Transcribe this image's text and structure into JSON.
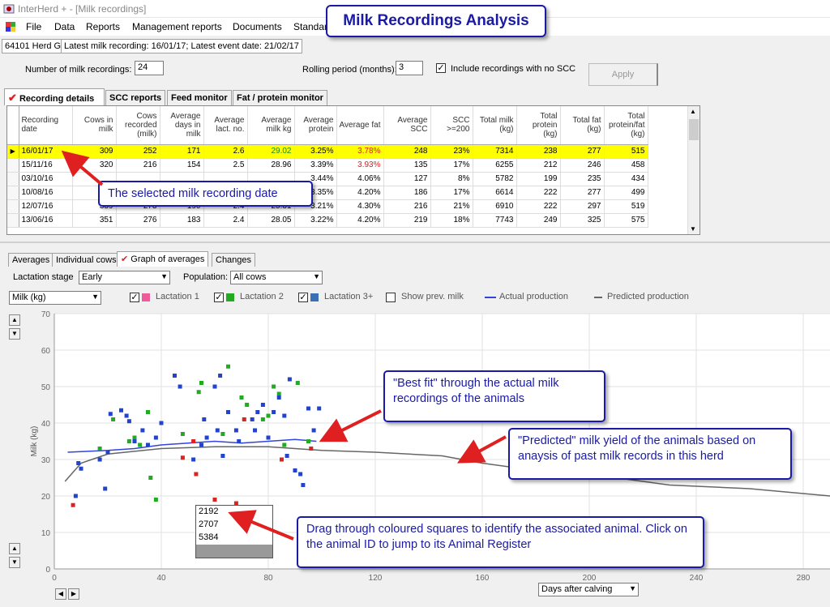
{
  "window": {
    "title": "InterHerd + - [Milk recordings]"
  },
  "banner": "Milk Recordings Analysis",
  "menu": [
    "File",
    "Data",
    "Reports",
    "Management reports",
    "Documents",
    "Standar"
  ],
  "status": {
    "herd": "64101 Herd G",
    "info": "Latest milk recording: 16/01/17; Latest event date: 21/02/17"
  },
  "settings": {
    "num_label": "Number of milk recordings:",
    "num_value": "24",
    "rolling_label": "Rolling period (months):",
    "rolling_value": "3",
    "include_label": "Include recordings with no SCC",
    "include_checked": "✓",
    "apply": "Apply"
  },
  "tabs": [
    "Recording details",
    "SCC reports",
    "Feed monitor",
    "Fat / protein monitor"
  ],
  "table": {
    "headers": [
      "Recording date",
      "Cows in milk",
      "Cows recorded (milk)",
      "Average days in milk",
      "Average lact. no.",
      "Average milk kg",
      "Average protein",
      "Average fat",
      "Average SCC",
      "SCC >=200",
      "Total milk (kg)",
      "Total protein (kg)",
      "Total fat (kg)",
      "Total protein/fat (kg)"
    ],
    "rows": [
      [
        "16/01/17",
        "309",
        "252",
        "171",
        "2.6",
        "29.02",
        "3.25%",
        "3.78%",
        "248",
        "23%",
        "7314",
        "238",
        "277",
        "515"
      ],
      [
        "15/11/16",
        "320",
        "216",
        "154",
        "2.5",
        "28.96",
        "3.39%",
        "3.93%",
        "135",
        "17%",
        "6255",
        "212",
        "246",
        "458"
      ],
      [
        "03/10/16",
        "",
        "",
        "",
        "",
        "",
        "3.44%",
        "4.06%",
        "127",
        "8%",
        "5782",
        "199",
        "235",
        "434"
      ],
      [
        "10/08/16",
        "",
        "",
        "",
        "",
        "",
        "3.35%",
        "4.20%",
        "186",
        "17%",
        "6614",
        "222",
        "277",
        "499"
      ],
      [
        "12/07/16",
        "339",
        "273",
        "190",
        "2.4",
        "25.31",
        "3.21%",
        "4.30%",
        "216",
        "21%",
        "6910",
        "222",
        "297",
        "519"
      ],
      [
        "13/06/16",
        "351",
        "276",
        "183",
        "2.4",
        "28.05",
        "3.22%",
        "4.20%",
        "219",
        "18%",
        "7743",
        "249",
        "325",
        "575"
      ]
    ]
  },
  "bottom_tabs": [
    "Averages",
    "Individual cows",
    "Graph of averages",
    "Changes"
  ],
  "filters": {
    "lact_label": "Lactation stage",
    "lact_value": "Early",
    "pop_label": "Population:",
    "pop_value": "All cows",
    "measure_value": "Milk (kg)",
    "days_value": "Days after calving"
  },
  "legend": {
    "l1": "Lactation 1",
    "l2": "Lactation 2",
    "l3": "Lactation 3+",
    "prev": "Show prev. milk",
    "actual": "Actual production",
    "predicted": "Predicted production"
  },
  "colors": {
    "l1": "#ee5a9a",
    "l2": "#22aa22",
    "l3": "#3a6fb5",
    "actual": "#3344dd",
    "predicted": "#666666",
    "highlight": "#ffff00",
    "callout": "#1a1aa6"
  },
  "callouts": {
    "selected": "The selected milk recording date",
    "bestfit": "\"Best fit\" through the actual milk recordings of the animals",
    "predicted": "\"Predicted\" milk yield of the animals based on anaysis of past milk records in this herd",
    "drag": "Drag through coloured squares to identify the associated animal. Click on the animal ID to jump to its Animal Register"
  },
  "popup_ids": [
    "2192",
    "2707",
    "5384"
  ],
  "chart_data": {
    "type": "scatter",
    "xlabel": "Days after calving",
    "ylabel": "Milk (kg)",
    "xlim": [
      0,
      290
    ],
    "ylim": [
      0,
      70
    ],
    "xticks": [
      0,
      40,
      80,
      120,
      160,
      200,
      240,
      280
    ],
    "yticks": [
      0,
      10,
      20,
      30,
      40,
      50,
      60,
      70
    ],
    "series": [
      {
        "name": "Lactation 1",
        "color": "#dd2222",
        "points": [
          [
            7,
            17.5
          ],
          [
            48,
            30.5
          ],
          [
            52,
            35
          ],
          [
            53,
            26
          ],
          [
            60,
            19
          ],
          [
            68,
            18
          ],
          [
            71,
            41
          ],
          [
            85,
            30
          ],
          [
            96,
            33
          ]
        ]
      },
      {
        "name": "Lactation 2",
        "color": "#22aa22",
        "points": [
          [
            17,
            33
          ],
          [
            22,
            41
          ],
          [
            28,
            35
          ],
          [
            30,
            36
          ],
          [
            32,
            34
          ],
          [
            35,
            43
          ],
          [
            36,
            25
          ],
          [
            48,
            37
          ],
          [
            54,
            48.5
          ],
          [
            55,
            51
          ],
          [
            63,
            37
          ],
          [
            65,
            55.5
          ],
          [
            70,
            47
          ],
          [
            72,
            45
          ],
          [
            78,
            41
          ],
          [
            80,
            42
          ],
          [
            82,
            50
          ],
          [
            84,
            48
          ],
          [
            86,
            34
          ],
          [
            91,
            51
          ],
          [
            95,
            35
          ],
          [
            38,
            19
          ]
        ]
      },
      {
        "name": "Lactation 3+",
        "color": "#2244cc",
        "points": [
          [
            8,
            20
          ],
          [
            9,
            29
          ],
          [
            10,
            27.5
          ],
          [
            17,
            30
          ],
          [
            19,
            22
          ],
          [
            20,
            32
          ],
          [
            21,
            42.5
          ],
          [
            25,
            43.5
          ],
          [
            27,
            42
          ],
          [
            28,
            40.5
          ],
          [
            30,
            35
          ],
          [
            33,
            38
          ],
          [
            35,
            34
          ],
          [
            38,
            36
          ],
          [
            40,
            40
          ],
          [
            45,
            53
          ],
          [
            47,
            50
          ],
          [
            52,
            30
          ],
          [
            55,
            34
          ],
          [
            56,
            41
          ],
          [
            57,
            36
          ],
          [
            60,
            50
          ],
          [
            61,
            38
          ],
          [
            62,
            53
          ],
          [
            63,
            31
          ],
          [
            65,
            43
          ],
          [
            68,
            38
          ],
          [
            69,
            35
          ],
          [
            74,
            41
          ],
          [
            75,
            38
          ],
          [
            76,
            43
          ],
          [
            78,
            45
          ],
          [
            80,
            36
          ],
          [
            82,
            43
          ],
          [
            84,
            47
          ],
          [
            86,
            42
          ],
          [
            87,
            31
          ],
          [
            88,
            52
          ],
          [
            90,
            27
          ],
          [
            92,
            26
          ],
          [
            93,
            23
          ],
          [
            94,
            13
          ],
          [
            95,
            44
          ],
          [
            97,
            38
          ],
          [
            99,
            44
          ]
        ]
      }
    ],
    "lines": [
      {
        "name": "Actual production",
        "color": "#3344dd",
        "points": [
          [
            5,
            32
          ],
          [
            20,
            32.5
          ],
          [
            30,
            33
          ],
          [
            40,
            34
          ],
          [
            50,
            34.5
          ],
          [
            60,
            35
          ],
          [
            70,
            34.5
          ],
          [
            80,
            35
          ],
          [
            90,
            35.5
          ],
          [
            98,
            35
          ]
        ]
      },
      {
        "name": "Predicted production",
        "color": "#666666",
        "points": [
          [
            4,
            24
          ],
          [
            10,
            29
          ],
          [
            20,
            31.5
          ],
          [
            40,
            33
          ],
          [
            60,
            33.5
          ],
          [
            80,
            33.5
          ],
          [
            100,
            32.5
          ],
          [
            120,
            32
          ],
          [
            145,
            31
          ],
          [
            160,
            29
          ],
          [
            180,
            27
          ],
          [
            200,
            26
          ],
          [
            230,
            23
          ],
          [
            260,
            22
          ],
          [
            290,
            20
          ]
        ]
      }
    ]
  }
}
